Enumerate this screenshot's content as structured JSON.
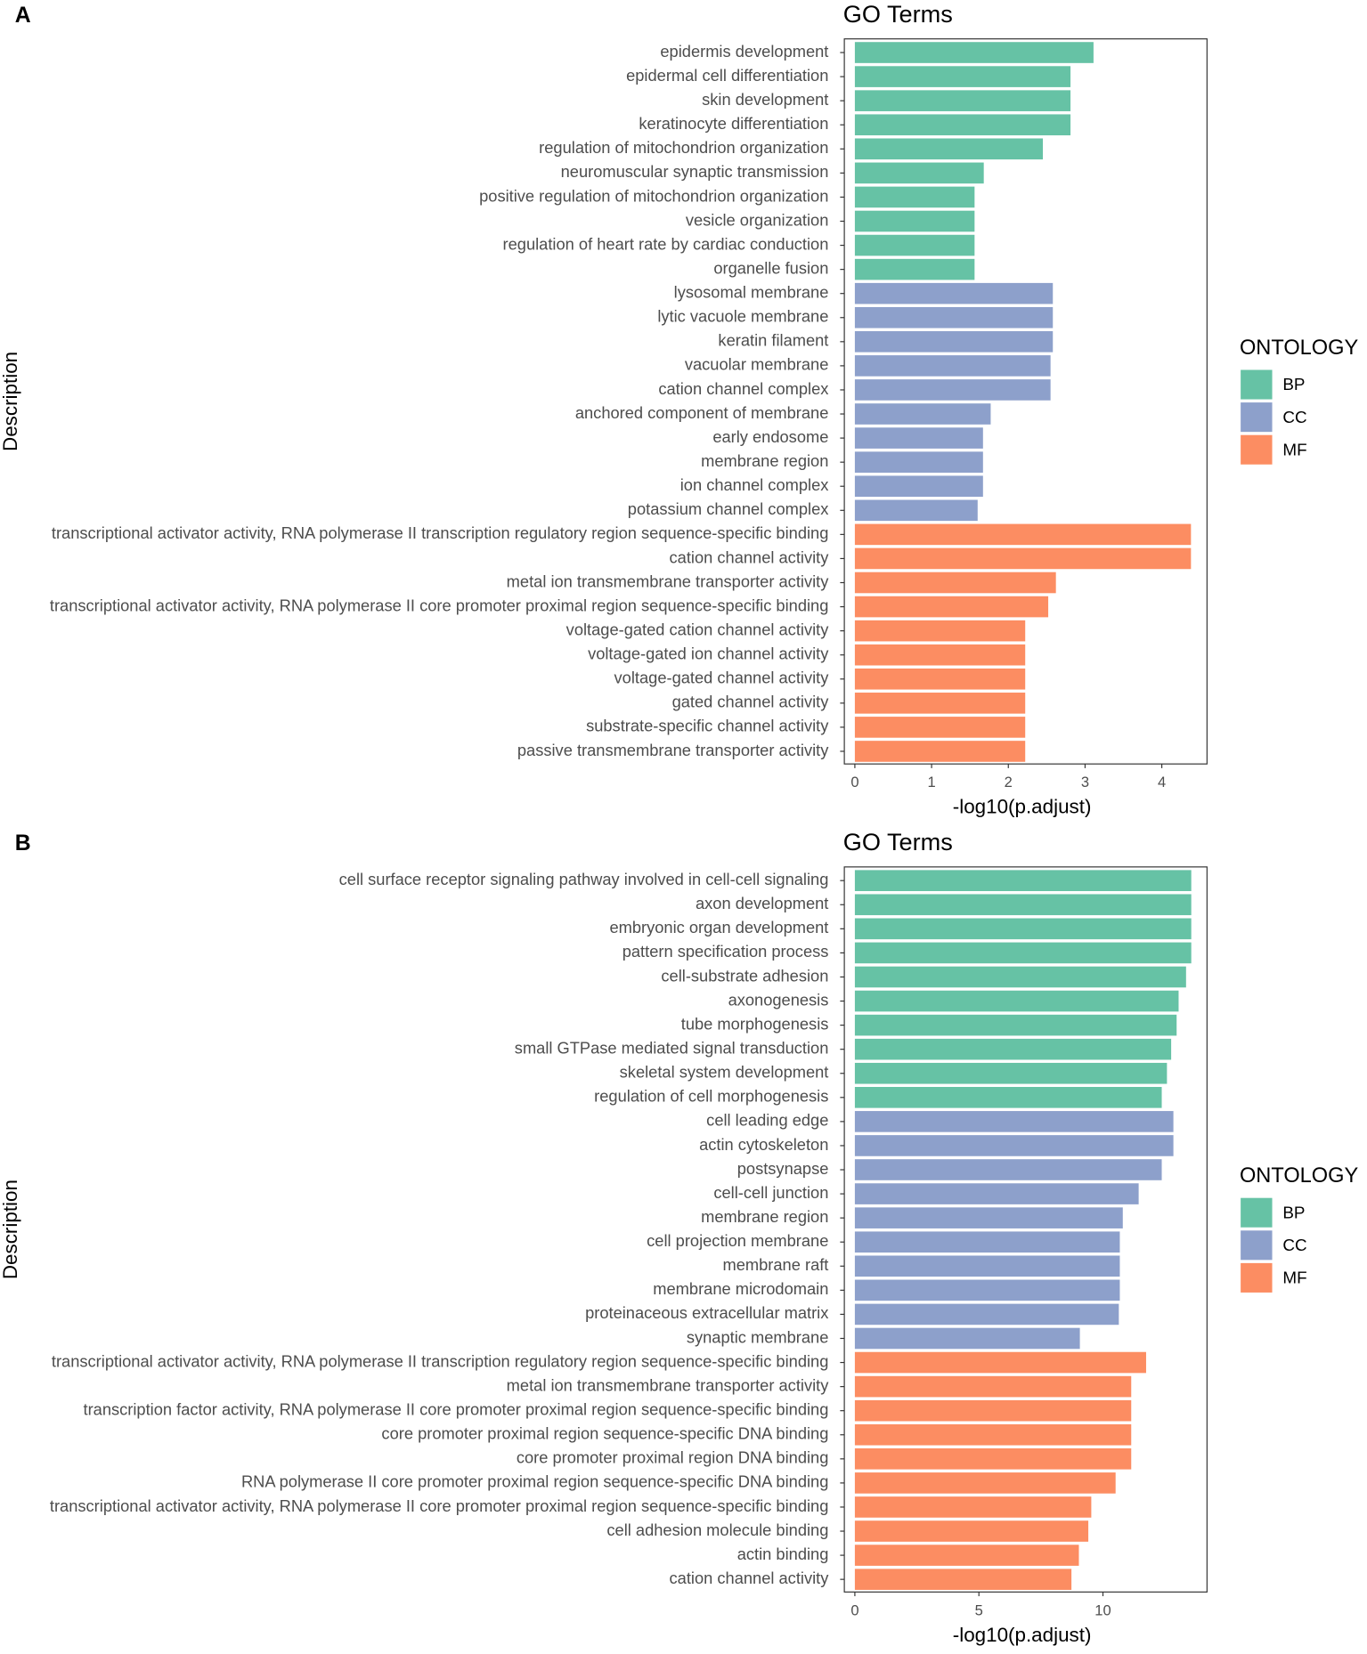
{
  "colors": {
    "BP": "#66C2A5",
    "CC": "#8DA0CB",
    "MF": "#FC8D62"
  },
  "chart_data": [
    {
      "panel": "A",
      "type": "bar",
      "orientation": "horizontal",
      "title": "GO Terms",
      "xlabel": "-log10(p.adjust)",
      "ylabel": "Description",
      "xlim": [
        0,
        4.6
      ],
      "xticks": [
        0,
        1,
        2,
        3,
        4
      ],
      "grid": false,
      "legend": {
        "title": "ONTOLOGY",
        "entries": [
          "BP",
          "CC",
          "MF"
        ],
        "placement": "right"
      },
      "bars": [
        {
          "label": "epidermis development",
          "value": 3.11,
          "ontology": "BP"
        },
        {
          "label": "epidermal cell differentiation",
          "value": 2.81,
          "ontology": "BP"
        },
        {
          "label": "skin development",
          "value": 2.81,
          "ontology": "BP"
        },
        {
          "label": "keratinocyte differentiation",
          "value": 2.81,
          "ontology": "BP"
        },
        {
          "label": "regulation of mitochondrion organization",
          "value": 2.45,
          "ontology": "BP"
        },
        {
          "label": "neuromuscular synaptic transmission",
          "value": 1.68,
          "ontology": "BP"
        },
        {
          "label": "positive regulation of mitochondrion organization",
          "value": 1.56,
          "ontology": "BP"
        },
        {
          "label": "vesicle organization",
          "value": 1.56,
          "ontology": "BP"
        },
        {
          "label": "regulation of heart rate by cardiac conduction",
          "value": 1.56,
          "ontology": "BP"
        },
        {
          "label": "organelle fusion",
          "value": 1.56,
          "ontology": "BP"
        },
        {
          "label": "lysosomal membrane",
          "value": 2.58,
          "ontology": "CC"
        },
        {
          "label": "lytic vacuole membrane",
          "value": 2.58,
          "ontology": "CC"
        },
        {
          "label": "keratin filament",
          "value": 2.58,
          "ontology": "CC"
        },
        {
          "label": "vacuolar membrane",
          "value": 2.55,
          "ontology": "CC"
        },
        {
          "label": "cation channel complex",
          "value": 2.55,
          "ontology": "CC"
        },
        {
          "label": "anchored component of membrane",
          "value": 1.77,
          "ontology": "CC"
        },
        {
          "label": "early endosome",
          "value": 1.67,
          "ontology": "CC"
        },
        {
          "label": "membrane region",
          "value": 1.67,
          "ontology": "CC"
        },
        {
          "label": "ion channel complex",
          "value": 1.67,
          "ontology": "CC"
        },
        {
          "label": "potassium channel complex",
          "value": 1.6,
          "ontology": "CC"
        },
        {
          "label": "transcriptional activator activity, RNA polymerase II transcription regulatory region sequence-specific binding",
          "value": 4.38,
          "ontology": "MF"
        },
        {
          "label": "cation channel activity",
          "value": 4.38,
          "ontology": "MF"
        },
        {
          "label": "metal ion transmembrane transporter activity",
          "value": 2.62,
          "ontology": "MF"
        },
        {
          "label": "transcriptional activator activity, RNA polymerase II core promoter proximal region sequence-specific binding",
          "value": 2.52,
          "ontology": "MF"
        },
        {
          "label": "voltage-gated cation channel activity",
          "value": 2.22,
          "ontology": "MF"
        },
        {
          "label": "voltage-gated ion channel activity",
          "value": 2.22,
          "ontology": "MF"
        },
        {
          "label": "voltage-gated channel activity",
          "value": 2.22,
          "ontology": "MF"
        },
        {
          "label": "gated channel activity",
          "value": 2.22,
          "ontology": "MF"
        },
        {
          "label": "substrate-specific channel activity",
          "value": 2.22,
          "ontology": "MF"
        },
        {
          "label": "passive transmembrane transporter activity",
          "value": 2.22,
          "ontology": "MF"
        }
      ]
    },
    {
      "panel": "B",
      "type": "bar",
      "orientation": "horizontal",
      "title": "GO Terms",
      "xlabel": "-log10(p.adjust)",
      "ylabel": "Description",
      "xlim": [
        0,
        14.2
      ],
      "xticks": [
        0,
        5,
        10
      ],
      "grid": false,
      "legend": {
        "title": "ONTOLOGY",
        "entries": [
          "BP",
          "CC",
          "MF"
        ],
        "placement": "right"
      },
      "bars": [
        {
          "label": "cell surface receptor signaling pathway involved in cell-cell signaling",
          "value": 13.56,
          "ontology": "BP"
        },
        {
          "label": "axon development",
          "value": 13.56,
          "ontology": "BP"
        },
        {
          "label": "embryonic organ development",
          "value": 13.56,
          "ontology": "BP"
        },
        {
          "label": "pattern specification process",
          "value": 13.56,
          "ontology": "BP"
        },
        {
          "label": "cell-substrate adhesion",
          "value": 13.35,
          "ontology": "BP"
        },
        {
          "label": "axonogenesis",
          "value": 13.05,
          "ontology": "BP"
        },
        {
          "label": "tube morphogenesis",
          "value": 12.97,
          "ontology": "BP"
        },
        {
          "label": "small GTPase mediated signal transduction",
          "value": 12.75,
          "ontology": "BP"
        },
        {
          "label": "skeletal system development",
          "value": 12.58,
          "ontology": "BP"
        },
        {
          "label": "regulation of cell morphogenesis",
          "value": 12.37,
          "ontology": "BP"
        },
        {
          "label": "cell leading edge",
          "value": 12.84,
          "ontology": "CC"
        },
        {
          "label": "actin cytoskeleton",
          "value": 12.84,
          "ontology": "CC"
        },
        {
          "label": "postsynapse",
          "value": 12.37,
          "ontology": "CC"
        },
        {
          "label": "cell-cell junction",
          "value": 11.44,
          "ontology": "CC"
        },
        {
          "label": "membrane region",
          "value": 10.8,
          "ontology": "CC"
        },
        {
          "label": "cell projection membrane",
          "value": 10.68,
          "ontology": "CC"
        },
        {
          "label": "membrane raft",
          "value": 10.68,
          "ontology": "CC"
        },
        {
          "label": "membrane microdomain",
          "value": 10.68,
          "ontology": "CC"
        },
        {
          "label": "proteinaceous extracellular matrix",
          "value": 10.64,
          "ontology": "CC"
        },
        {
          "label": "synaptic membrane",
          "value": 9.07,
          "ontology": "CC"
        },
        {
          "label": "transcriptional activator activity, RNA polymerase II transcription regulatory region sequence-specific binding",
          "value": 11.74,
          "ontology": "MF"
        },
        {
          "label": "metal ion transmembrane transporter activity",
          "value": 11.14,
          "ontology": "MF"
        },
        {
          "label": "transcription factor activity, RNA polymerase II core promoter proximal region sequence-specific binding",
          "value": 11.14,
          "ontology": "MF"
        },
        {
          "label": "core promoter proximal region sequence-specific DNA binding",
          "value": 11.14,
          "ontology": "MF"
        },
        {
          "label": "core promoter proximal region DNA binding",
          "value": 11.14,
          "ontology": "MF"
        },
        {
          "label": "RNA polymerase II core promoter proximal region sequence-specific DNA binding",
          "value": 10.51,
          "ontology": "MF"
        },
        {
          "label": "transcriptional activator activity, RNA polymerase II core promoter proximal region sequence-specific binding",
          "value": 9.53,
          "ontology": "MF"
        },
        {
          "label": "cell adhesion molecule binding",
          "value": 9.41,
          "ontology": "MF"
        },
        {
          "label": "actin binding",
          "value": 9.03,
          "ontology": "MF"
        },
        {
          "label": "cation channel activity",
          "value": 8.73,
          "ontology": "MF"
        }
      ]
    }
  ]
}
